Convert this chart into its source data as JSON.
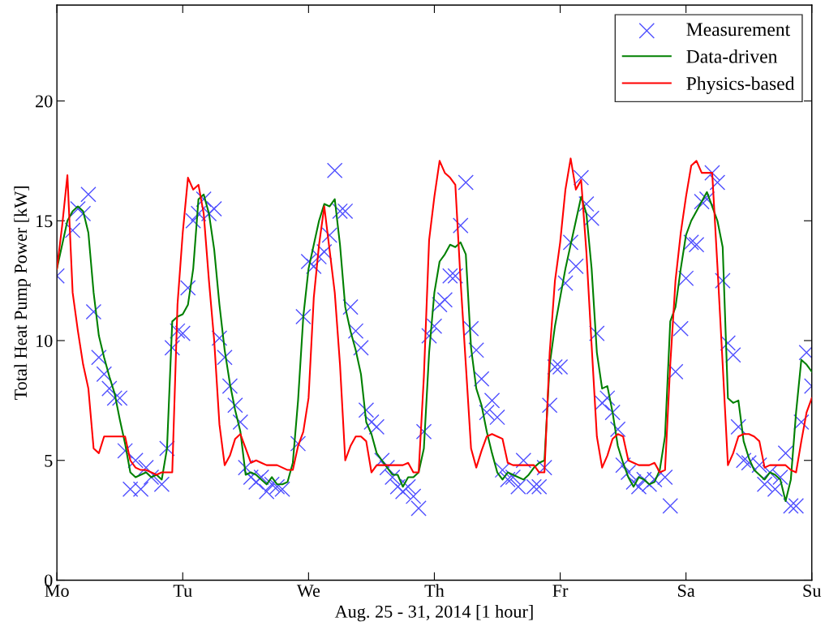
{
  "chart_data": {
    "type": "line",
    "xlabel": "Aug. 25 - 31, 2014 [1 hour]",
    "ylabel": "Total Heat Pump Power [kW]",
    "categories": [
      "Mo",
      null,
      null,
      null,
      null,
      null,
      null,
      null,
      null,
      null,
      null,
      null,
      null,
      null,
      null,
      null,
      null,
      null,
      null,
      null,
      null,
      null,
      null,
      null,
      "Tu",
      null,
      null,
      null,
      null,
      null,
      null,
      null,
      null,
      null,
      null,
      null,
      null,
      null,
      null,
      null,
      null,
      null,
      null,
      null,
      null,
      null,
      null,
      null,
      "We",
      null,
      null,
      null,
      null,
      null,
      null,
      null,
      null,
      null,
      null,
      null,
      null,
      null,
      null,
      null,
      null,
      null,
      null,
      null,
      null,
      null,
      null,
      null,
      "Th",
      null,
      null,
      null,
      null,
      null,
      null,
      null,
      null,
      null,
      null,
      null,
      null,
      null,
      null,
      null,
      null,
      null,
      null,
      null,
      null,
      null,
      null,
      null,
      "Fr",
      null,
      null,
      null,
      null,
      null,
      null,
      null,
      null,
      null,
      null,
      null,
      null,
      null,
      null,
      null,
      null,
      null,
      null,
      null,
      null,
      null,
      null,
      null,
      "Sa",
      null,
      null,
      null,
      null,
      null,
      null,
      null,
      null,
      null,
      null,
      null,
      null,
      null,
      null,
      null,
      null,
      null,
      null,
      null,
      null,
      null,
      null,
      null,
      "Su"
    ],
    "ylim": [
      0,
      24
    ],
    "yticks": [
      0,
      5,
      10,
      15,
      20
    ],
    "grid": false,
    "legend": "top right",
    "series": [
      {
        "name": "Measurement",
        "type": "scatter",
        "marker": "cross",
        "color": "#5050ff",
        "values": [
          12.7,
          null,
          null,
          14.6,
          15.5,
          15.3,
          16.1,
          11.2,
          9.3,
          8.6,
          8.0,
          7.6,
          7.6,
          5.4,
          3.8,
          5.0,
          3.8,
          4.7,
          4.3,
          null,
          4.0,
          5.5,
          9.7,
          10.4,
          10.3,
          12.2,
          15.0,
          15.3,
          15.9,
          15.3,
          15.5,
          10.1,
          9.3,
          8.1,
          7.3,
          6.6,
          4.7,
          4.3,
          4.1,
          4.3,
          3.7,
          4.0,
          3.9,
          3.8,
          null,
          null,
          5.7,
          11.0,
          13.3,
          13.1,
          13.5,
          13.7,
          14.4,
          17.1,
          15.4,
          15.4,
          11.4,
          10.4,
          9.7,
          7.1,
          6.6,
          6.4,
          5.0,
          4.7,
          4.3,
          3.9,
          3.7,
          3.9,
          3.5,
          3.0,
          6.2,
          10.2,
          10.6,
          11.5,
          11.7,
          12.7,
          12.7,
          14.8,
          16.6,
          10.5,
          9.6,
          8.4,
          7.0,
          7.5,
          6.8,
          4.6,
          4.2,
          4.3,
          3.9,
          5.0,
          null,
          3.9,
          3.9,
          4.7,
          7.3,
          8.9,
          8.9,
          12.4,
          14.1,
          13.1,
          16.8,
          15.7,
          15.1,
          10.3,
          7.4,
          7.6,
          7.0,
          6.3,
          4.8,
          4.5,
          4.1,
          3.9,
          4.2,
          4.0,
          4.2,
          null,
          4.3,
          3.1,
          8.7,
          10.5,
          12.6,
          14.1,
          14.0,
          15.8,
          15.9,
          17.0,
          16.6,
          12.5,
          9.9,
          9.4,
          6.4,
          5.0,
          4.9,
          null,
          4.8,
          4.0,
          4.5,
          3.8,
          4.3,
          5.3,
          3.1,
          3.1,
          6.6,
          9.5,
          8.1
        ]
      },
      {
        "name": "Data-driven",
        "color": "#008000",
        "values": [
          13.0,
          14.0,
          15.0,
          15.4,
          15.6,
          15.4,
          14.5,
          12.0,
          10.2,
          9.3,
          8.5,
          7.8,
          6.7,
          5.7,
          4.5,
          4.3,
          4.4,
          4.5,
          4.3,
          4.4,
          4.2,
          5.5,
          10.8,
          11.0,
          11.1,
          11.5,
          13.0,
          15.9,
          16.1,
          15.3,
          13.8,
          11.5,
          9.6,
          8.2,
          7.1,
          6.2,
          4.4,
          4.5,
          4.4,
          4.2,
          4.0,
          4.3,
          4.0,
          4.0,
          4.1,
          4.9,
          7.5,
          11.0,
          13.0,
          14.0,
          15.0,
          15.7,
          15.6,
          15.9,
          14.0,
          11.4,
          10.4,
          9.6,
          8.6,
          6.6,
          6.1,
          5.3,
          5.0,
          4.7,
          4.4,
          4.4,
          3.9,
          4.3,
          4.3,
          4.5,
          5.5,
          9.5,
          12.0,
          13.3,
          13.6,
          14.0,
          13.9,
          14.1,
          13.6,
          9.7,
          8.0,
          7.3,
          6.2,
          5.3,
          4.5,
          4.2,
          4.5,
          4.4,
          4.3,
          4.2,
          4.4,
          4.7,
          4.9,
          5.0,
          9.0,
          10.6,
          11.8,
          13.0,
          14.0,
          15.0,
          16.0,
          15.3,
          13.0,
          9.5,
          8.0,
          8.1,
          7.0,
          5.6,
          4.9,
          4.3,
          3.9,
          4.3,
          4.2,
          4.0,
          4.1,
          4.6,
          6.0,
          10.8,
          11.4,
          13.0,
          14.4,
          15.0,
          15.4,
          15.8,
          16.2,
          15.6,
          15.0,
          13.9,
          7.6,
          7.4,
          7.5,
          5.8,
          5.1,
          4.6,
          4.4,
          4.2,
          4.5,
          4.4,
          4.2,
          3.3,
          4.2,
          7.0,
          9.2,
          9.0,
          8.7
        ]
      },
      {
        "name": "Physics-based",
        "color": "#ff0000",
        "values": [
          13.0,
          14.8,
          16.9,
          12.0,
          10.4,
          9.0,
          8.0,
          5.5,
          5.3,
          6.0,
          6.0,
          6.0,
          6.0,
          6.0,
          5.0,
          4.7,
          4.6,
          4.6,
          4.5,
          4.4,
          4.5,
          4.5,
          4.5,
          11.5,
          14.5,
          16.8,
          16.3,
          16.5,
          15.3,
          12.5,
          10.0,
          6.5,
          4.8,
          5.2,
          5.9,
          6.1,
          5.5,
          4.9,
          5.0,
          4.9,
          4.8,
          4.8,
          4.8,
          4.7,
          4.6,
          4.6,
          5.6,
          6.2,
          7.6,
          11.8,
          14.0,
          15.6,
          13.8,
          12.0,
          9.0,
          5.0,
          5.6,
          6.0,
          6.0,
          5.8,
          4.5,
          4.8,
          4.8,
          4.8,
          4.8,
          4.8,
          4.8,
          4.9,
          4.5,
          4.5,
          8.5,
          14.2,
          16.0,
          17.5,
          17.0,
          16.8,
          16.5,
          12.5,
          9.0,
          5.5,
          4.7,
          5.4,
          6.0,
          6.1,
          6.0,
          5.9,
          4.9,
          4.8,
          4.8,
          4.8,
          4.8,
          4.8,
          4.5,
          4.5,
          9.5,
          12.5,
          14.1,
          16.3,
          17.6,
          16.3,
          16.7,
          13.7,
          9.8,
          6.0,
          4.7,
          5.2,
          5.9,
          6.1,
          6.0,
          5.0,
          4.9,
          4.8,
          4.8,
          4.8,
          4.9,
          4.5,
          4.6,
          9.0,
          12.5,
          14.5,
          16.0,
          17.3,
          17.5,
          17.0,
          17.0,
          17.0,
          13.1,
          9.0,
          4.8,
          5.3,
          6.0,
          6.1,
          6.1,
          6.0,
          5.8,
          4.7,
          4.8,
          4.8,
          4.8,
          4.8,
          4.6,
          4.5,
          5.8,
          7.0,
          7.6
        ]
      }
    ]
  }
}
